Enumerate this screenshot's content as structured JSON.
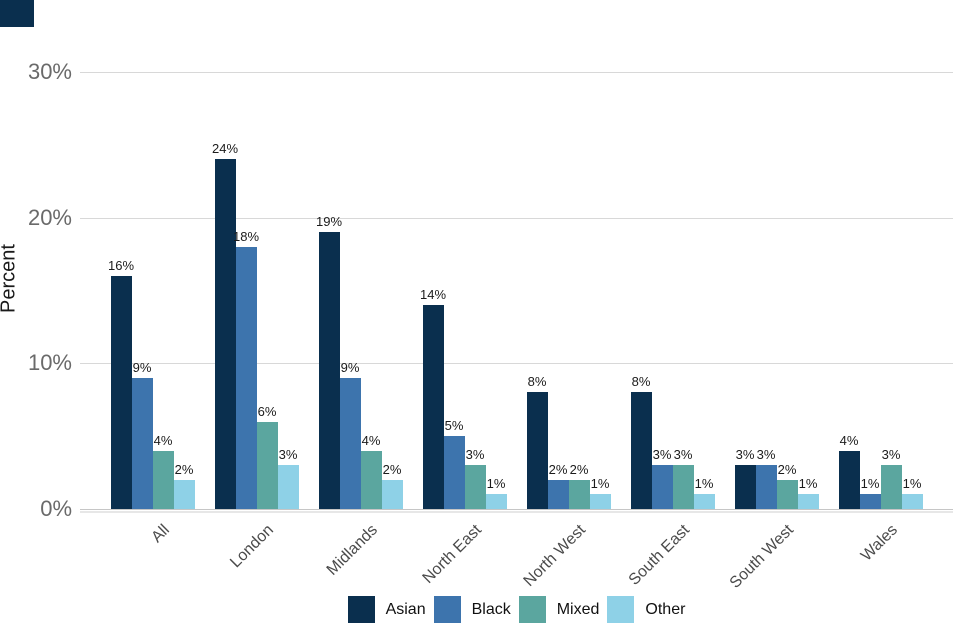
{
  "chart_data": {
    "type": "bar",
    "title": "",
    "xlabel": "",
    "ylabel": "Percent",
    "categories": [
      "All",
      "London",
      "Midlands",
      "North East",
      "North West",
      "South East",
      "South West",
      "Wales"
    ],
    "series": [
      {
        "name": "Asian",
        "color": "#0a2f4e",
        "values": [
          16,
          24,
          19,
          14,
          8,
          8,
          3,
          4
        ]
      },
      {
        "name": "Black",
        "color": "#3d74ad",
        "values": [
          9,
          18,
          9,
          5,
          2,
          3,
          3,
          1
        ]
      },
      {
        "name": "Mixed",
        "color": "#5ba69f",
        "values": [
          4,
          6,
          4,
          3,
          2,
          3,
          2,
          3
        ]
      },
      {
        "name": "Other",
        "color": "#8ed1e7",
        "values": [
          2,
          3,
          2,
          1,
          1,
          1,
          1,
          1
        ]
      }
    ],
    "value_label_suffix": "%",
    "yticks": [
      0,
      10,
      20,
      30
    ],
    "ytick_labels": [
      "0%",
      "10%",
      "20%",
      "30%"
    ],
    "ylim": [
      0,
      30
    ],
    "grid": true,
    "legend_position": "bottom"
  },
  "colors": {
    "background": "#ffffff",
    "gridline": "#d8d8d8",
    "zero_line": "#c6c6c6",
    "zero_sub_line": "#e7e7e7",
    "ytick_text": "#6a6a6a",
    "xlabel_text": "#4a4a4a",
    "value_text": "#1c1c1c",
    "axis_title_text": "#1a1a1a",
    "corner_mark": "#0a2f4e"
  }
}
